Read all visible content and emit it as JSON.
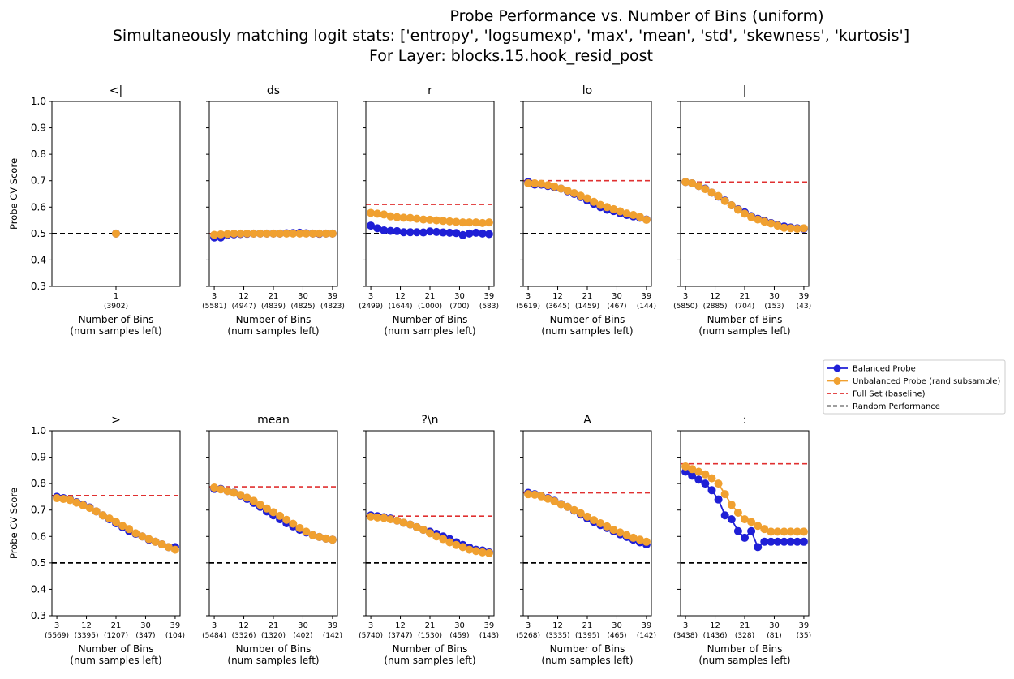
{
  "colors": {
    "balanced": "#1f1fd6",
    "unbalanced": "#f0a030",
    "baseline": "#e03030",
    "random": "#000000"
  },
  "figure": {
    "title_lines": [
      "Probe Performance vs. Number of Bins (uniform)",
      "Simultaneously matching logit stats: ['entropy', 'logsumexp', 'max', 'mean', 'std', 'skewness', 'kurtosis']",
      "For Layer: blocks.15.hook_resid_post"
    ],
    "ylabel": "Probe CV Score",
    "xlabel_line1": "Number of Bins",
    "xlabel_line2": "(num samples left)",
    "ylim": [
      0.3,
      1.0
    ],
    "yticks": [
      "0.3",
      "0.4",
      "0.5",
      "0.6",
      "0.7",
      "0.8",
      "0.9",
      "1.0"
    ],
    "legend": [
      "Balanced Probe",
      "Unbalanced Probe (rand subsample)",
      "Full Set (baseline)",
      "Random Performance"
    ]
  },
  "chart_data": [
    {
      "type": "line",
      "title": "<|",
      "xlim": [
        0.5,
        1.5
      ],
      "x": [
        1
      ],
      "xticks": [
        1
      ],
      "xtick_labels": [
        "1"
      ],
      "xtick_counts": [
        "(3902)"
      ],
      "baseline": null,
      "random": 0.5,
      "series": [
        {
          "name": "Balanced Probe",
          "values": [
            0.5
          ]
        },
        {
          "name": "Unbalanced Probe (rand subsample)",
          "values": [
            0.5
          ]
        }
      ]
    },
    {
      "type": "line",
      "title": "ds",
      "xlim": [
        1.5,
        40.5
      ],
      "x": [
        3,
        5,
        7,
        9,
        11,
        13,
        15,
        17,
        19,
        21,
        23,
        25,
        27,
        29,
        31,
        33,
        35,
        37,
        39
      ],
      "xticks": [
        3,
        12,
        21,
        30,
        39
      ],
      "xtick_labels": [
        "3",
        "12",
        "21",
        "30",
        "39"
      ],
      "xtick_counts": [
        "(5581)",
        "(4947)",
        "(4839)",
        "(4825)",
        "(4823)"
      ],
      "baseline": 0.5,
      "random": 0.5,
      "series": [
        {
          "name": "Balanced Probe",
          "values": [
            0.485,
            0.485,
            0.495,
            0.497,
            0.498,
            0.499,
            0.5,
            0.5,
            0.5,
            0.5,
            0.5,
            0.501,
            0.502,
            0.503,
            0.501,
            0.5,
            0.499,
            0.5,
            0.5
          ]
        },
        {
          "name": "Unbalanced Probe (rand subsample)",
          "values": [
            0.495,
            0.497,
            0.498,
            0.5,
            0.5,
            0.5,
            0.5,
            0.5,
            0.5,
            0.5,
            0.5,
            0.5,
            0.5,
            0.5,
            0.5,
            0.5,
            0.5,
            0.5,
            0.5
          ]
        }
      ]
    },
    {
      "type": "line",
      "title": "r",
      "xlim": [
        1.5,
        40.5
      ],
      "x": [
        3,
        5,
        7,
        9,
        11,
        13,
        15,
        17,
        19,
        21,
        23,
        25,
        27,
        29,
        31,
        33,
        35,
        37,
        39
      ],
      "xticks": [
        3,
        12,
        21,
        30,
        39
      ],
      "xtick_labels": [
        "3",
        "12",
        "21",
        "30",
        "39"
      ],
      "xtick_counts": [
        "(2499)",
        "(1644)",
        "(1000)",
        "(700)",
        "(583)"
      ],
      "baseline": 0.61,
      "random": 0.5,
      "series": [
        {
          "name": "Balanced Probe",
          "values": [
            0.53,
            0.52,
            0.512,
            0.51,
            0.509,
            0.505,
            0.505,
            0.505,
            0.504,
            0.508,
            0.506,
            0.504,
            0.503,
            0.502,
            0.494,
            0.5,
            0.503,
            0.5,
            0.498
          ]
        },
        {
          "name": "Unbalanced Probe (rand subsample)",
          "values": [
            0.578,
            0.575,
            0.572,
            0.565,
            0.562,
            0.56,
            0.559,
            0.556,
            0.553,
            0.552,
            0.55,
            0.548,
            0.546,
            0.544,
            0.542,
            0.542,
            0.542,
            0.54,
            0.542
          ]
        }
      ]
    },
    {
      "type": "line",
      "title": "lo",
      "xlim": [
        1.5,
        40.5
      ],
      "x": [
        3,
        5,
        7,
        9,
        11,
        13,
        15,
        17,
        19,
        21,
        23,
        25,
        27,
        29,
        31,
        33,
        35,
        37,
        39
      ],
      "xticks": [
        3,
        12,
        21,
        30,
        39
      ],
      "xtick_labels": [
        "3",
        "12",
        "21",
        "30",
        "39"
      ],
      "xtick_counts": [
        "(5619)",
        "(3645)",
        "(1459)",
        "(467)",
        "(144)"
      ],
      "baseline": 0.7,
      "random": 0.5,
      "series": [
        {
          "name": "Balanced Probe",
          "values": [
            0.695,
            0.685,
            0.685,
            0.68,
            0.675,
            0.67,
            0.66,
            0.65,
            0.638,
            0.625,
            0.612,
            0.6,
            0.59,
            0.585,
            0.577,
            0.57,
            0.565,
            0.56,
            0.553
          ]
        },
        {
          "name": "Unbalanced Probe (rand subsample)",
          "values": [
            0.69,
            0.69,
            0.688,
            0.683,
            0.678,
            0.67,
            0.662,
            0.653,
            0.643,
            0.633,
            0.62,
            0.608,
            0.6,
            0.592,
            0.584,
            0.576,
            0.57,
            0.563,
            0.552
          ]
        }
      ]
    },
    {
      "type": "line",
      "title": "|",
      "xlim": [
        1.5,
        40.5
      ],
      "x": [
        3,
        5,
        7,
        9,
        11,
        13,
        15,
        17,
        19,
        21,
        23,
        25,
        27,
        29,
        31,
        33,
        35,
        37,
        39
      ],
      "xticks": [
        3,
        12,
        21,
        30,
        39
      ],
      "xtick_labels": [
        "3",
        "12",
        "21",
        "30",
        "39"
      ],
      "xtick_counts": [
        "(5850)",
        "(2885)",
        "(704)",
        "(153)",
        "(43)"
      ],
      "baseline": 0.695,
      "random": 0.5,
      "series": [
        {
          "name": "Balanced Probe",
          "values": [
            0.695,
            0.69,
            0.68,
            0.67,
            0.655,
            0.64,
            0.625,
            0.607,
            0.592,
            0.58,
            0.566,
            0.556,
            0.548,
            0.54,
            0.532,
            0.527,
            0.523,
            0.52,
            0.518
          ]
        },
        {
          "name": "Unbalanced Probe (rand subsample)",
          "values": [
            0.695,
            0.69,
            0.68,
            0.668,
            0.655,
            0.642,
            0.623,
            0.607,
            0.59,
            0.575,
            0.562,
            0.553,
            0.545,
            0.538,
            0.53,
            0.522,
            0.52,
            0.518,
            0.52
          ]
        }
      ]
    },
    {
      "type": "line",
      "title": ">",
      "xlim": [
        1.5,
        40.5
      ],
      "x": [
        3,
        5,
        7,
        9,
        11,
        13,
        15,
        17,
        19,
        21,
        23,
        25,
        27,
        29,
        31,
        33,
        35,
        37,
        39
      ],
      "xticks": [
        3,
        12,
        21,
        30,
        39
      ],
      "xtick_labels": [
        "3",
        "12",
        "21",
        "30",
        "39"
      ],
      "xtick_counts": [
        "(5569)",
        "(3395)",
        "(1207)",
        "(347)",
        "(104)"
      ],
      "baseline": 0.755,
      "random": 0.5,
      "series": [
        {
          "name": "Balanced Probe",
          "values": [
            0.75,
            0.745,
            0.74,
            0.73,
            0.72,
            0.71,
            0.695,
            0.68,
            0.665,
            0.65,
            0.635,
            0.62,
            0.61,
            0.6,
            0.588,
            0.58,
            0.57,
            0.56,
            0.56
          ]
        },
        {
          "name": "Unbalanced Probe (rand subsample)",
          "values": [
            0.745,
            0.742,
            0.738,
            0.728,
            0.718,
            0.708,
            0.695,
            0.68,
            0.668,
            0.655,
            0.64,
            0.628,
            0.612,
            0.6,
            0.59,
            0.58,
            0.57,
            0.56,
            0.55
          ]
        }
      ]
    },
    {
      "type": "line",
      "title": "mean",
      "xlim": [
        1.5,
        40.5
      ],
      "x": [
        3,
        5,
        7,
        9,
        11,
        13,
        15,
        17,
        19,
        21,
        23,
        25,
        27,
        29,
        31,
        33,
        35,
        37,
        39
      ],
      "xticks": [
        3,
        12,
        21,
        30,
        39
      ],
      "xtick_labels": [
        "3",
        "12",
        "21",
        "30",
        "39"
      ],
      "xtick_counts": [
        "(5484)",
        "(3326)",
        "(1320)",
        "(402)",
        "(142)"
      ],
      "baseline": 0.788,
      "random": 0.5,
      "series": [
        {
          "name": "Balanced Probe",
          "values": [
            0.78,
            0.78,
            0.772,
            0.766,
            0.755,
            0.742,
            0.727,
            0.712,
            0.695,
            0.68,
            0.665,
            0.65,
            0.638,
            0.625,
            0.615,
            0.605,
            0.598,
            0.592,
            0.588
          ]
        },
        {
          "name": "Unbalanced Probe (rand subsample)",
          "values": [
            0.785,
            0.778,
            0.772,
            0.765,
            0.757,
            0.747,
            0.735,
            0.72,
            0.706,
            0.692,
            0.678,
            0.663,
            0.648,
            0.632,
            0.618,
            0.605,
            0.598,
            0.592,
            0.588
          ]
        }
      ]
    },
    {
      "type": "line",
      "title": "?\\n",
      "xlim": [
        1.5,
        40.5
      ],
      "x": [
        3,
        5,
        7,
        9,
        11,
        13,
        15,
        17,
        19,
        21,
        23,
        25,
        27,
        29,
        31,
        33,
        35,
        37,
        39
      ],
      "xticks": [
        3,
        12,
        21,
        30,
        39
      ],
      "xtick_labels": [
        "3",
        "12",
        "21",
        "30",
        "39"
      ],
      "xtick_counts": [
        "(5740)",
        "(3747)",
        "(1530)",
        "(459)",
        "(143)"
      ],
      "baseline": 0.677,
      "random": 0.5,
      "series": [
        {
          "name": "Balanced Probe",
          "values": [
            0.68,
            0.677,
            0.673,
            0.668,
            0.66,
            0.652,
            0.645,
            0.635,
            0.625,
            0.618,
            0.61,
            0.6,
            0.59,
            0.578,
            0.568,
            0.558,
            0.55,
            0.547,
            0.54
          ]
        },
        {
          "name": "Unbalanced Probe (rand subsample)",
          "values": [
            0.675,
            0.672,
            0.67,
            0.665,
            0.66,
            0.652,
            0.645,
            0.635,
            0.625,
            0.612,
            0.6,
            0.59,
            0.578,
            0.568,
            0.56,
            0.55,
            0.545,
            0.54,
            0.537
          ]
        }
      ]
    },
    {
      "type": "line",
      "title": "A",
      "xlim": [
        1.5,
        40.5
      ],
      "x": [
        3,
        5,
        7,
        9,
        11,
        13,
        15,
        17,
        19,
        21,
        23,
        25,
        27,
        29,
        31,
        33,
        35,
        37,
        39
      ],
      "xticks": [
        3,
        12,
        21,
        30,
        39
      ],
      "xtick_labels": [
        "3",
        "12",
        "21",
        "30",
        "39"
      ],
      "xtick_counts": [
        "(5268)",
        "(3335)",
        "(1395)",
        "(465)",
        "(142)"
      ],
      "baseline": 0.765,
      "random": 0.5,
      "series": [
        {
          "name": "Balanced Probe",
          "values": [
            0.765,
            0.76,
            0.753,
            0.745,
            0.735,
            0.723,
            0.712,
            0.698,
            0.683,
            0.668,
            0.655,
            0.643,
            0.632,
            0.62,
            0.608,
            0.598,
            0.588,
            0.578,
            0.57
          ]
        },
        {
          "name": "Unbalanced Probe (rand subsample)",
          "values": [
            0.76,
            0.758,
            0.752,
            0.743,
            0.733,
            0.722,
            0.712,
            0.7,
            0.688,
            0.675,
            0.662,
            0.65,
            0.638,
            0.625,
            0.615,
            0.605,
            0.595,
            0.588,
            0.58
          ]
        }
      ]
    },
    {
      "type": "line",
      "title": ":",
      "xlim": [
        1.5,
        40.5
      ],
      "x": [
        3,
        5,
        7,
        9,
        11,
        13,
        15,
        17,
        19,
        21,
        23,
        25,
        27,
        29,
        31,
        33,
        35,
        37,
        39
      ],
      "xticks": [
        3,
        12,
        21,
        30,
        39
      ],
      "xtick_labels": [
        "3",
        "12",
        "21",
        "30",
        "39"
      ],
      "xtick_counts": [
        "(3438)",
        "(1436)",
        "(328)",
        "(81)",
        "(35)"
      ],
      "baseline": 0.875,
      "random": 0.5,
      "series": [
        {
          "name": "Balanced Probe",
          "values": [
            0.845,
            0.83,
            0.815,
            0.8,
            0.775,
            0.74,
            0.68,
            0.665,
            0.62,
            0.595,
            0.62,
            0.56,
            0.58,
            0.58,
            0.58,
            0.58,
            0.58,
            0.58,
            0.58
          ]
        },
        {
          "name": "Unbalanced Probe (rand subsample)",
          "values": [
            0.865,
            0.855,
            0.845,
            0.835,
            0.82,
            0.8,
            0.76,
            0.72,
            0.69,
            0.665,
            0.655,
            0.64,
            0.628,
            0.618,
            0.618,
            0.618,
            0.618,
            0.618,
            0.618
          ]
        }
      ]
    }
  ]
}
